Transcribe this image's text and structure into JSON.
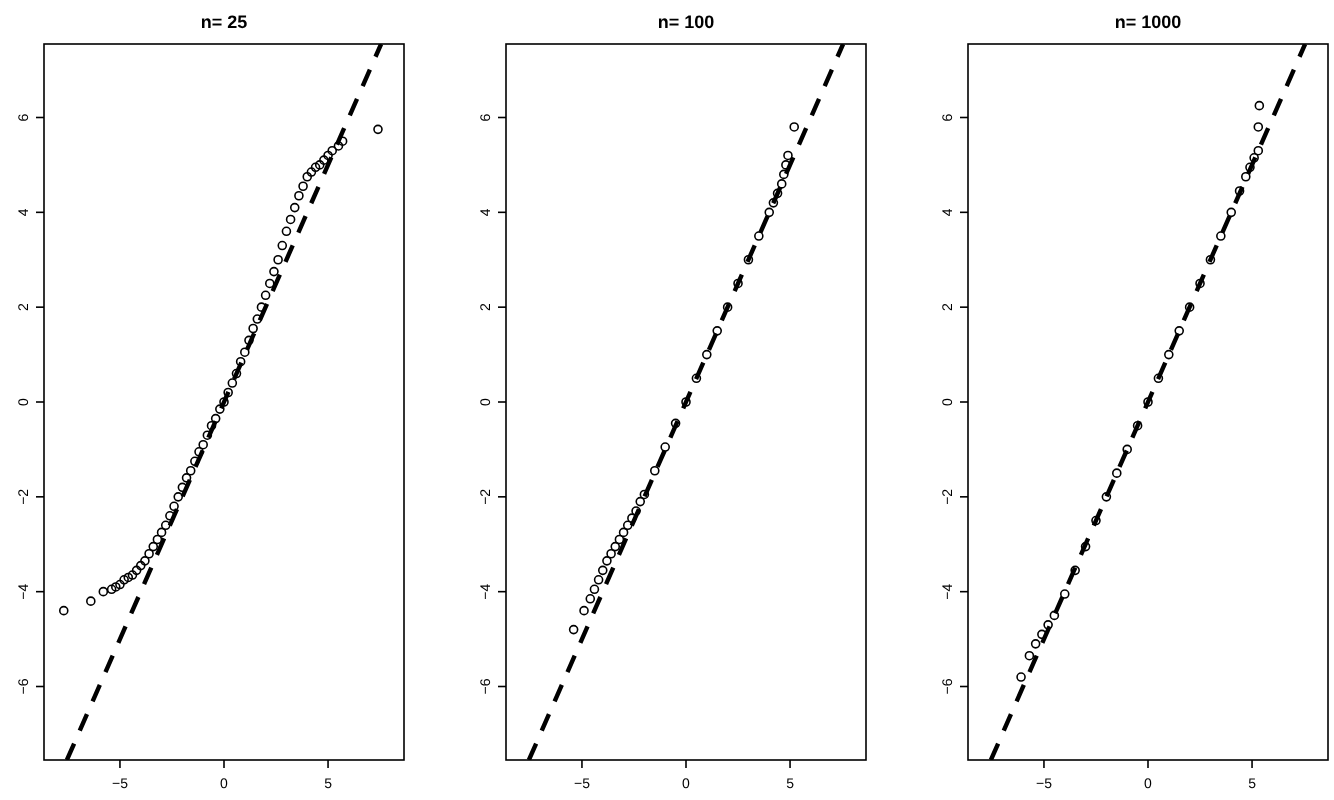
{
  "chart_data": [
    {
      "type": "scatter",
      "title": "n= 25",
      "xlim": [
        -8.65,
        8.65
      ],
      "ylim": [
        -7.55,
        7.55
      ],
      "xticks": [
        -5,
        0,
        5
      ],
      "yticks": [
        -6,
        -4,
        -2,
        0,
        2,
        4,
        6
      ],
      "series": [
        {
          "marker": "circle",
          "color": "#000000",
          "x": [
            -7.7,
            -6.4,
            -5.8,
            -5.4,
            -5.2,
            -5.0,
            -4.8,
            -4.6,
            -4.4,
            -4.2,
            -4.0,
            -3.8,
            -3.6,
            -3.4,
            -3.2,
            -3.0,
            -2.8,
            -2.6,
            -2.4,
            -2.2,
            -2.0,
            -1.8,
            -1.6,
            -1.4,
            -1.2,
            -1.0,
            -0.8,
            -0.6,
            -0.4,
            -0.2,
            0,
            0.2,
            0.4,
            0.6,
            0.8,
            1.0,
            1.2,
            1.4,
            1.6,
            1.8,
            2.0,
            2.2,
            2.4,
            2.6,
            2.8,
            3.0,
            3.2,
            3.4,
            3.6,
            3.8,
            4.0,
            4.2,
            4.4,
            4.6,
            4.8,
            5.0,
            5.2,
            5.5,
            5.7,
            7.4
          ],
          "values": [
            -4.4,
            -4.2,
            -4.0,
            -3.95,
            -3.9,
            -3.85,
            -3.75,
            -3.7,
            -3.65,
            -3.55,
            -3.45,
            -3.35,
            -3.2,
            -3.05,
            -2.9,
            -2.75,
            -2.6,
            -2.4,
            -2.2,
            -2.0,
            -1.8,
            -1.6,
            -1.45,
            -1.25,
            -1.05,
            -0.9,
            -0.7,
            -0.5,
            -0.35,
            -0.15,
            0,
            0.2,
            0.4,
            0.6,
            0.85,
            1.05,
            1.3,
            1.55,
            1.75,
            2.0,
            2.25,
            2.5,
            2.75,
            3.0,
            3.3,
            3.6,
            3.85,
            4.1,
            4.35,
            4.55,
            4.75,
            4.85,
            4.95,
            5.0,
            5.1,
            5.2,
            5.3,
            5.4,
            5.5,
            5.75
          ]
        },
        {
          "type": "line",
          "color": "#000000",
          "line_style": "dashed",
          "x": [
            -7.55,
            7.55
          ],
          "values": [
            -7.55,
            7.55
          ]
        }
      ]
    },
    {
      "type": "scatter",
      "title": "n= 100",
      "xlim": [
        -8.65,
        8.65
      ],
      "ylim": [
        -7.55,
        7.55
      ],
      "xticks": [
        -5,
        0,
        5
      ],
      "yticks": [
        -6,
        -4,
        -2,
        0,
        2,
        4,
        6
      ],
      "series": [
        {
          "marker": "circle",
          "color": "#000000",
          "x": [
            -5.4,
            -4.9,
            -4.6,
            -4.4,
            -4.2,
            -4.0,
            -3.8,
            -3.6,
            -3.4,
            -3.2,
            -3.0,
            -2.8,
            -2.6,
            -2.4,
            -2.2,
            -2.0,
            -1.5,
            -1.0,
            -0.5,
            0,
            0.5,
            1.0,
            1.5,
            2.0,
            2.5,
            3.0,
            3.5,
            4.0,
            4.2,
            4.4,
            4.6,
            4.7,
            4.8,
            4.9,
            5.2
          ],
          "values": [
            -4.8,
            -4.4,
            -4.15,
            -3.95,
            -3.75,
            -3.55,
            -3.35,
            -3.2,
            -3.05,
            -2.9,
            -2.75,
            -2.6,
            -2.45,
            -2.3,
            -2.1,
            -1.95,
            -1.45,
            -0.95,
            -0.45,
            0,
            0.5,
            1.0,
            1.5,
            2.0,
            2.5,
            3.0,
            3.5,
            4.0,
            4.2,
            4.4,
            4.6,
            4.8,
            5.0,
            5.2,
            5.8
          ]
        },
        {
          "type": "line",
          "color": "#000000",
          "line_style": "dashed",
          "x": [
            -7.55,
            7.55
          ],
          "values": [
            -7.55,
            7.55
          ]
        }
      ]
    },
    {
      "type": "scatter",
      "title": "n= 1000",
      "xlim": [
        -8.65,
        8.65
      ],
      "ylim": [
        -7.55,
        7.55
      ],
      "xticks": [
        -5,
        0,
        5
      ],
      "yticks": [
        -6,
        -4,
        -2,
        0,
        2,
        4,
        6
      ],
      "series": [
        {
          "marker": "circle",
          "color": "#000000",
          "x": [
            -6.1,
            -5.7,
            -5.4,
            -5.1,
            -4.8,
            -4.5,
            -4.0,
            -3.5,
            -3.0,
            -2.5,
            -2.0,
            -1.5,
            -1.0,
            -0.5,
            0,
            0.5,
            1.0,
            1.5,
            2.0,
            2.5,
            3.0,
            3.5,
            4.0,
            4.4,
            4.7,
            4.9,
            5.1,
            5.3,
            5.3,
            5.35
          ],
          "values": [
            -5.8,
            -5.35,
            -5.1,
            -4.9,
            -4.7,
            -4.5,
            -4.05,
            -3.55,
            -3.05,
            -2.5,
            -2.0,
            -1.5,
            -1.0,
            -0.5,
            0,
            0.5,
            1.0,
            1.5,
            2.0,
            2.5,
            3.0,
            3.5,
            4.0,
            4.45,
            4.75,
            4.95,
            5.15,
            5.3,
            5.8,
            6.25
          ]
        },
        {
          "type": "line",
          "color": "#000000",
          "line_style": "dashed",
          "x": [
            -7.55,
            7.55
          ],
          "values": [
            -7.55,
            7.55
          ]
        }
      ]
    }
  ]
}
